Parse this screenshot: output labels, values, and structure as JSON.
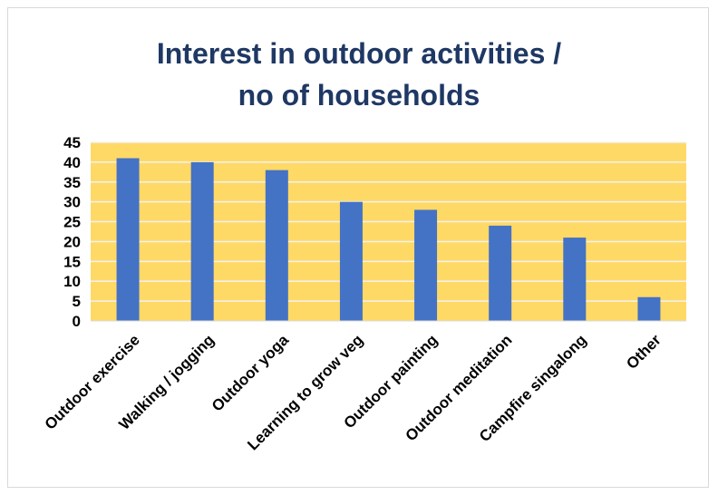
{
  "chart_data": {
    "type": "bar",
    "title_lines": [
      "Interest in outdoor activities /",
      "no of households"
    ],
    "categories": [
      "Outdoor exercise",
      "Walking / jogging",
      "Outdoor yoga",
      "Learning to grow veg",
      "Outdoor painting",
      "Outdoor meditation",
      "Campfire singalong",
      "Other"
    ],
    "values": [
      41,
      40,
      38,
      30,
      28,
      24,
      21,
      6
    ],
    "ylim": [
      0,
      45
    ],
    "yticks": [
      0,
      5,
      10,
      15,
      20,
      25,
      30,
      35,
      40,
      45
    ],
    "grid": true,
    "legend": "none",
    "colors": {
      "bar": "#4472c4",
      "plot_background": "#ffd966",
      "gridline": "#f2f2f2",
      "title": "#1f3864"
    }
  }
}
